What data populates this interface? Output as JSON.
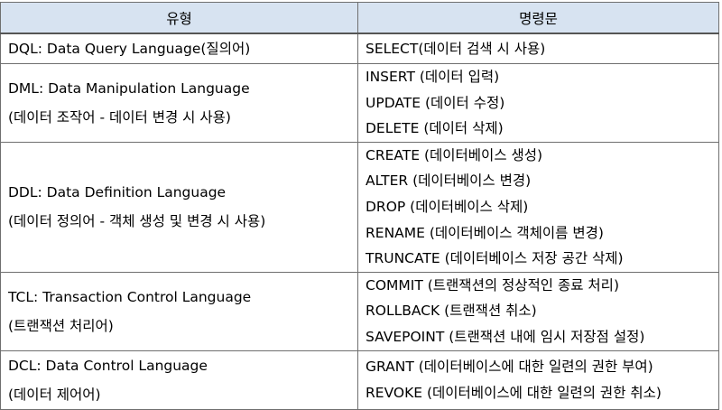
{
  "headers": {
    "type": "유형",
    "command": "명령문"
  },
  "rows": [
    {
      "type": [
        "DQL: Data Query Language(질의어)"
      ],
      "commands": [
        "SELECT(데이터 검색 시 사용)"
      ]
    },
    {
      "type": [
        "DML: Data Manipulation Language",
        "(데이터 조작어 - 데이터 변경 시 사용)"
      ],
      "commands": [
        "INSERT (데이터 입력)",
        "UPDATE (데이터 수정)",
        "DELETE (데이터 삭제)"
      ]
    },
    {
      "type": [
        "DDL: Data Definition Language",
        "(데이터 정의어 - 객체 생성 및 변경 시 사용)"
      ],
      "commands": [
        "CREATE (데이터베이스 생성)",
        "ALTER (데이터베이스 변경)",
        "DROP (데이터베이스 삭제)",
        "RENAME (데이터베이스 객체이름 변경)",
        "TRUNCATE (데이터베이스 저장 공간 삭제)"
      ]
    },
    {
      "type": [
        "TCL: Transaction Control Language",
        "(트랜잭션 처리어)"
      ],
      "commands": [
        "COMMIT (트랜잭션의 정상적인 종료 처리)",
        "ROLLBACK (트랜잭션 취소)",
        "SAVEPOINT (트랜잭션 내에 임시 저장점 설정)"
      ]
    },
    {
      "type": [
        "DCL: Data Control Language",
        "(데이터 제어어)"
      ],
      "commands": [
        "GRANT (데이터베이스에 대한 일련의 권한 부여)",
        "REVOKE (데이터베이스에 대한 일련의 권한 취소)"
      ]
    }
  ]
}
